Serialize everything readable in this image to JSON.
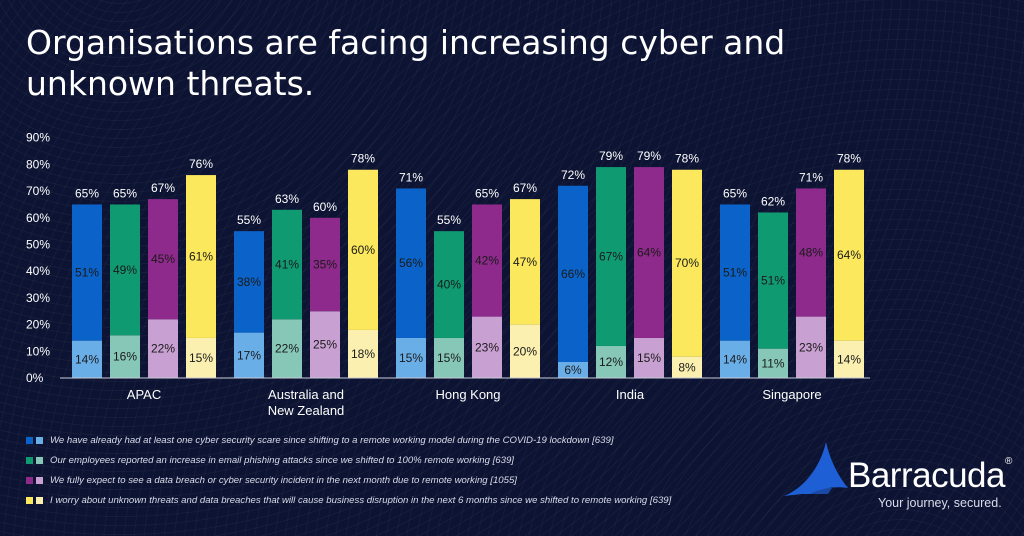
{
  "brand": {
    "name": "Barracuda",
    "reg": "®",
    "tagline": "Your journey, secured."
  },
  "colors": {
    "series_dark": [
      "#0b63c9",
      "#0f9a72",
      "#8e2a8c",
      "#fbe85c"
    ],
    "series_light": [
      "#6aaee8",
      "#86c7b7",
      "#c8a0d2",
      "#fbf0b0"
    ],
    "axis_text": "#ffffff"
  },
  "chart_data": {
    "type": "bar",
    "title": "Organisations are facing increasing cyber and unknown threats.",
    "categories": [
      "APAC",
      "Australia and New Zealand",
      "Hong Kong",
      "India",
      "Singapore"
    ],
    "y_ticks": [
      "0%",
      "10%",
      "20%",
      "30%",
      "40%",
      "50%",
      "60%",
      "70%",
      "80%",
      "90%"
    ],
    "ylim": [
      0,
      90
    ],
    "series": [
      {
        "name": "We have already had at least one cyber security scare since shifting to a remote working model during the COVID-19 lockdown [639]",
        "totals": [
          65,
          55,
          71,
          72,
          65
        ],
        "lower": [
          14,
          17,
          15,
          6,
          14
        ],
        "upper": [
          51,
          38,
          56,
          66,
          51
        ]
      },
      {
        "name": "Our employees reported an increase in email phishing attacks since we shifted to 100% remote working [639]",
        "totals": [
          65,
          63,
          55,
          79,
          62
        ],
        "lower": [
          16,
          22,
          15,
          12,
          11
        ],
        "upper": [
          49,
          41,
          40,
          67,
          51
        ]
      },
      {
        "name": "We fully expect to see a data breach or cyber security incident in the next month due to remote working [1055]",
        "totals": [
          67,
          60,
          65,
          79,
          71
        ],
        "lower": [
          22,
          25,
          23,
          15,
          23
        ],
        "upper": [
          45,
          35,
          42,
          64,
          48
        ]
      },
      {
        "name": "I worry about unknown threats and data breaches that will cause business disruption in the next 6 months since we shifted to remote working [639]",
        "totals": [
          76,
          78,
          67,
          78,
          78
        ],
        "lower": [
          15,
          18,
          20,
          8,
          14
        ],
        "upper": [
          61,
          60,
          47,
          70,
          64
        ]
      }
    ]
  }
}
